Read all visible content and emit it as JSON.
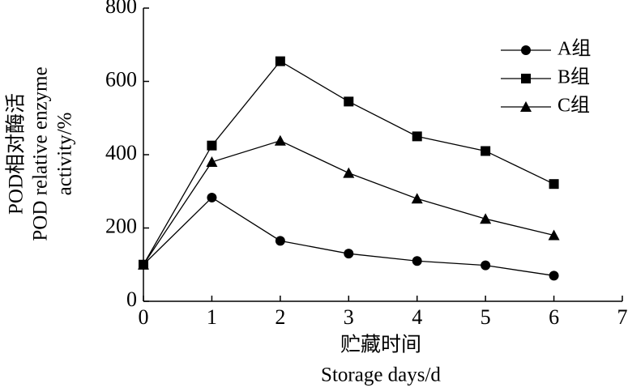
{
  "chart_data": {
    "type": "line",
    "x": [
      0,
      1,
      2,
      3,
      4,
      5,
      6
    ],
    "series": [
      {
        "name": "A组",
        "color": "#000000",
        "marker": "circle",
        "values": [
          100,
          283,
          165,
          130,
          110,
          98,
          70
        ]
      },
      {
        "name": "B组",
        "color": "#000000",
        "marker": "square",
        "values": [
          100,
          425,
          655,
          545,
          450,
          410,
          320
        ]
      },
      {
        "name": "C组",
        "color": "#000000",
        "marker": "triangle",
        "values": [
          100,
          380,
          438,
          350,
          280,
          225,
          180
        ]
      }
    ],
    "xlim": [
      0,
      7
    ],
    "xticks": [
      0,
      1,
      2,
      3,
      4,
      5,
      6,
      7
    ],
    "ylim": [
      0,
      800
    ],
    "yticks": [
      0,
      200,
      400,
      600,
      800
    ],
    "xlabel": [
      "贮藏时间",
      "Storage days/d"
    ],
    "ylabel": [
      "POD相对酶活",
      "POD relative enzyme",
      "activity/%"
    ],
    "legend": "upper right",
    "grid": false
  }
}
